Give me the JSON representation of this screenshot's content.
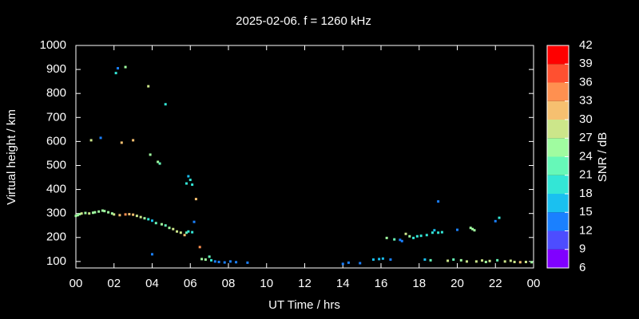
{
  "chart_data": {
    "type": "scatter",
    "title": "2025-02-06. f = 1260 kHz",
    "xlabel": "UT Time / hrs",
    "ylabel": "Virtual height / km",
    "colorbar_label": "SNR / dB",
    "xlim": [
      0,
      24
    ],
    "xticks": [
      {
        "value": 0,
        "label": "00"
      },
      {
        "value": 2,
        "label": "02"
      },
      {
        "value": 4,
        "label": "04"
      },
      {
        "value": 6,
        "label": "06"
      },
      {
        "value": 8,
        "label": "08"
      },
      10,
      12,
      14,
      16,
      18,
      20,
      22,
      {
        "value": 24,
        "label": "00"
      }
    ],
    "ylim": [
      73,
      1000
    ],
    "yticks": [
      100,
      200,
      300,
      400,
      500,
      600,
      700,
      800,
      900,
      1000
    ],
    "clim": [
      6,
      42
    ],
    "cticks": [
      6,
      9,
      12,
      15,
      18,
      21,
      24,
      27,
      30,
      33,
      36,
      39,
      42
    ],
    "colormap": [
      "#8000ff",
      "#4d4dff",
      "#1a80ff",
      "#1ac0f0",
      "#33e6d6",
      "#66f8b8",
      "#a0fca0",
      "#cce68a",
      "#f6c070",
      "#ff9050",
      "#ff5030",
      "#ff0000"
    ],
    "series": [
      {
        "x": [
          0.0,
          0.1,
          0.2,
          0.3,
          0.5,
          0.7,
          0.9,
          1.0,
          1.2,
          1.4,
          1.5,
          1.7,
          1.9,
          2.0,
          2.3,
          2.6,
          2.8,
          3.0,
          3.2,
          3.4,
          3.6,
          3.8,
          4.0,
          4.2,
          4.5,
          4.7,
          4.9,
          5.1,
          5.3,
          5.5,
          5.7,
          5.8,
          5.9,
          0.8,
          1.3,
          2.1,
          2.2,
          2.6,
          2.4,
          3.0,
          3.8,
          3.9,
          4.3,
          4.4,
          4.7,
          4.0,
          5.8,
          5.9,
          6.0,
          6.1,
          6.3,
          6.2,
          6.1,
          6.5,
          6.6,
          6.8,
          7.0,
          7.1,
          7.3,
          7.5,
          7.8,
          8.1,
          8.4,
          9.0,
          14.0,
          14.3,
          14.9,
          15.6,
          15.9,
          16.1,
          16.3,
          16.5,
          16.7,
          17.0,
          17.1,
          17.3,
          17.5,
          17.7,
          17.9,
          18.1,
          18.3,
          18.4,
          18.6,
          18.7,
          18.8,
          19.0,
          19.0,
          19.2,
          19.5,
          19.8,
          20.0,
          20.2,
          20.5,
          20.7,
          20.8,
          20.9,
          21.0,
          21.3,
          21.5,
          21.7,
          22.0,
          22.1,
          22.2,
          22.5,
          22.8,
          23.0,
          23.3,
          23.6,
          23.9
        ],
        "values": [
          290,
          293,
          297,
          300,
          302,
          300,
          303,
          305,
          308,
          312,
          310,
          305,
          300,
          296,
          293,
          296,
          297,
          295,
          290,
          285,
          280,
          276,
          270,
          260,
          255,
          250,
          240,
          235,
          225,
          220,
          210,
          220,
          225,
          605,
          615,
          885,
          905,
          910,
          595,
          605,
          830,
          545,
          515,
          508,
          755,
          130,
          425,
          455,
          440,
          420,
          360,
          265,
          222,
          160,
          110,
          108,
          120,
          105,
          100,
          98,
          96,
          100,
          97,
          95,
          90,
          95,
          93,
          108,
          110,
          112,
          198,
          108,
          192,
          190,
          185,
          215,
          205,
          198,
          205,
          207,
          108,
          210,
          105,
          220,
          230,
          220,
          350,
          222,
          103,
          108,
          232,
          105,
          100,
          240,
          235,
          230,
          100,
          104,
          98,
          102,
          268,
          105,
          282,
          100,
          103,
          98,
          97,
          98,
          97
        ],
        "snr": [
          24,
          25,
          26,
          27,
          26,
          27,
          26,
          25,
          26,
          25,
          24,
          25,
          26,
          28,
          32,
          35,
          31,
          30,
          28,
          27,
          24,
          20,
          17,
          22,
          24,
          23,
          26,
          27,
          29,
          28,
          31,
          22,
          20,
          28,
          12,
          20,
          14,
          24,
          30,
          30,
          28,
          25,
          24,
          23,
          20,
          12,
          19,
          17,
          18,
          20,
          30,
          13,
          19,
          34,
          24,
          25,
          21,
          19,
          13,
          12,
          12,
          12,
          12,
          12,
          12,
          12,
          12,
          16,
          16,
          17,
          24,
          14,
          22,
          13,
          13,
          28,
          25,
          20,
          19,
          18,
          16,
          19,
          22,
          19,
          17,
          18,
          13,
          18,
          27,
          22,
          12,
          24,
          28,
          24,
          25,
          25,
          28,
          27,
          26,
          29,
          12,
          22,
          18,
          29,
          27,
          28,
          30,
          27,
          26
        ]
      }
    ]
  }
}
